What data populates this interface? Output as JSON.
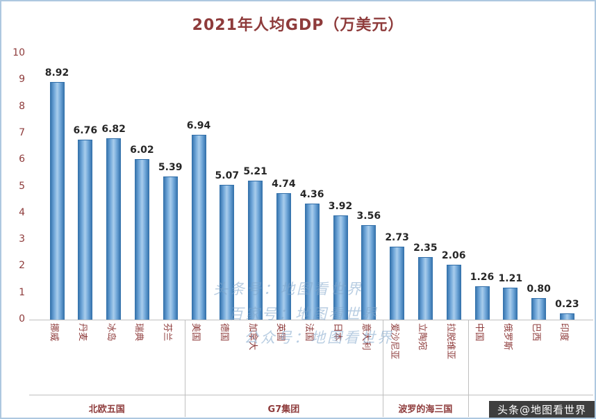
{
  "chart_data": {
    "type": "bar",
    "title": "2021年人均GDP（万美元）",
    "xlabel": "",
    "ylabel": "",
    "ylim": [
      0,
      10
    ],
    "ytick_step": 1,
    "grid": false,
    "legend": null,
    "categories": [
      "挪威",
      "丹麦",
      "冰岛",
      "瑞典",
      "芬兰",
      "美国",
      "德国",
      "加拿大",
      "英国",
      "法国",
      "日本",
      "意大利",
      "爱沙尼亚",
      "立陶宛",
      "拉脱维亚",
      "中国",
      "俄罗斯",
      "巴西",
      "印度"
    ],
    "values": [
      8.92,
      6.76,
      6.82,
      6.02,
      5.39,
      6.94,
      5.07,
      5.21,
      4.74,
      4.36,
      3.92,
      3.56,
      2.73,
      2.35,
      2.06,
      1.26,
      1.21,
      0.8,
      0.23
    ],
    "value_labels": [
      "8.92",
      "6.76",
      "6.82",
      "6.02",
      "5.39",
      "6.94",
      "5.07",
      "5.21",
      "4.74",
      "4.36",
      "3.92",
      "3.56",
      "2.73",
      "2.35",
      "2.06",
      "1.26",
      "1.21",
      "0.80",
      "0.23"
    ],
    "groups": [
      {
        "label": "北欧五国",
        "start": 0,
        "count": 5
      },
      {
        "label": "G7集团",
        "start": 5,
        "count": 7
      },
      {
        "label": "波罗的海三国",
        "start": 12,
        "count": 3
      },
      {
        "label": "",
        "start": 15,
        "count": 4
      }
    ]
  },
  "colors": {
    "title_text": "#8E3B3B",
    "axis_text": "#8E3B3B",
    "value_text": "#262626",
    "bar_light": "#A9CDEC",
    "bar_dark": "#2F6DA8",
    "axis_line": "#BFBFBF",
    "watermark": "#7FA6CB",
    "frame_border": "#ADC8E0"
  },
  "watermarks": [
    "头条号：地图看世界",
    "百家号：地图看世界",
    "公众号：地图看世界"
  ],
  "badge": "头条@地图看世界"
}
